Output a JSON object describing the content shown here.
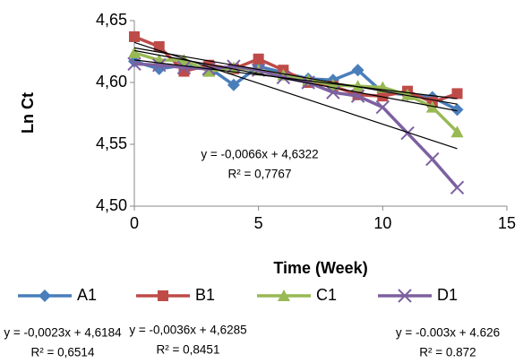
{
  "chart_data": {
    "type": "line",
    "x_label": "Time (Week)",
    "y_label": "Ln Ct",
    "x": [
      0,
      1,
      2,
      3,
      4,
      5,
      6,
      7,
      8,
      9,
      10,
      11,
      12,
      13
    ],
    "series": [
      {
        "name": "A1",
        "color": "#4a7ebb",
        "marker": "diamond",
        "trendline": true,
        "values": [
          4.617,
          4.611,
          4.614,
          4.612,
          4.598,
          4.613,
          4.608,
          4.603,
          4.602,
          4.61,
          4.592,
          4.59,
          4.588,
          4.578
        ]
      },
      {
        "name": "B1",
        "color": "#be4b48",
        "marker": "square",
        "trendline": true,
        "values": [
          4.637,
          4.629,
          4.609,
          4.614,
          4.611,
          4.619,
          4.61,
          4.6,
          4.597,
          4.59,
          4.589,
          4.593,
          4.584,
          4.591
        ]
      },
      {
        "name": "C1",
        "color": "#98b954",
        "marker": "triangle",
        "trendline": true,
        "values": [
          4.624,
          4.618,
          4.618,
          4.609,
          4.612,
          4.61,
          4.606,
          4.602,
          4.598,
          4.597,
          4.596,
          4.59,
          4.58,
          4.56
        ]
      },
      {
        "name": "D1",
        "color": "#7d60a0",
        "marker": "x",
        "trendline": true,
        "values": [
          4.615,
          4.614,
          4.612,
          4.611,
          4.613,
          4.61,
          4.604,
          4.6,
          4.592,
          4.589,
          4.58,
          4.559,
          4.538,
          4.515
        ]
      }
    ],
    "xlim": [
      0,
      15
    ],
    "xticks": [
      0,
      5,
      10,
      15
    ],
    "ylim": [
      4.5,
      4.65
    ],
    "yticks": [
      {
        "value": 4.5,
        "label": "4,50"
      },
      {
        "value": 4.55,
        "label": "4,55"
      },
      {
        "value": 4.6,
        "label": "4,60"
      },
      {
        "value": 4.65,
        "label": "4,65"
      }
    ],
    "grid": false,
    "legend": "bottom",
    "annotations": [
      [
        "y = -0,0066x + 4,6322",
        "R² = 0,7767"
      ],
      [
        "y = -0,0023x + 4,6184",
        "R² = 0,6514"
      ],
      [
        "y = -0,0036x + 4,6285",
        "R² = 0,8451"
      ],
      [
        "y = -0.003x + 4.626",
        "R² = 0.872"
      ]
    ]
  }
}
